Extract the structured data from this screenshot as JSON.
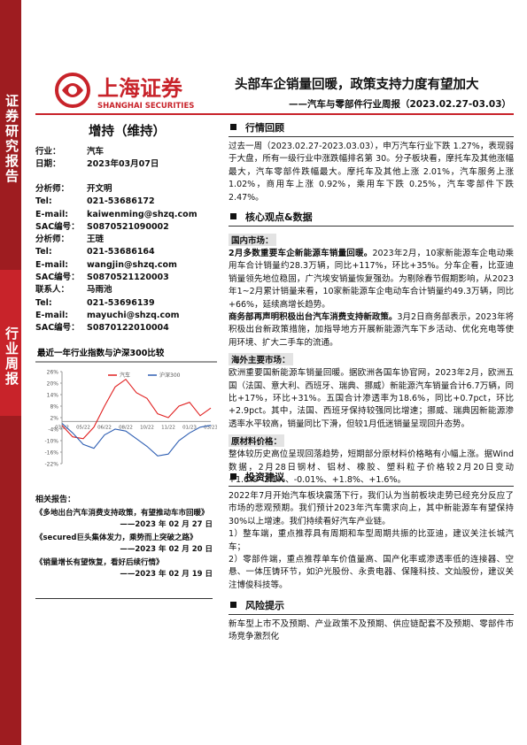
{
  "sidebar": {
    "top": "证券研究报告",
    "middle": "行业周报"
  },
  "logo": {
    "cn": "上海证券",
    "en": "SHANGHAI SECURITIES"
  },
  "header": {
    "title": "头部车企销量回暖，政策支持力度有望加大",
    "subtitle": "——汽车与零部件行业周报（2023.02.27-03.03）"
  },
  "rating": "增持（维持）",
  "info": [
    {
      "label": "行业：",
      "value": "汽车"
    },
    {
      "label": "日期：",
      "value": "2023年03月07日"
    }
  ],
  "contacts": [
    {
      "label": "分析师：",
      "value": "开文明"
    },
    {
      "label": "Tel:",
      "value": "021-53686172"
    },
    {
      "label": "E-mail:",
      "value": "kaiwenming@shzq.com"
    },
    {
      "label": "SAC编号：",
      "value": "S0870521090002"
    },
    {
      "label": "分析师：",
      "value": "王琏"
    },
    {
      "label": "Tel:",
      "value": "021-53686164"
    },
    {
      "label": "E-mail:",
      "value": "wangjin@shzq.com"
    },
    {
      "label": "SAC编号：",
      "value": "S0870521120003"
    },
    {
      "label": "联系人：",
      "value": "马雨池"
    },
    {
      "label": "Tel:",
      "value": "021-53696139"
    },
    {
      "label": "E-mail:",
      "value": "mayuchi@shzq.com"
    },
    {
      "label": "SAC编号：",
      "value": "S0870122010004"
    }
  ],
  "chart_data": {
    "type": "line",
    "title": "最近一年行业指数与沪深300比较",
    "categories": [
      "03/22",
      null,
      "05/22",
      null,
      "06/22",
      null,
      "08/22",
      null,
      "10/22",
      null,
      "11/22",
      null,
      "01/23",
      null,
      "03/23"
    ],
    "series": [
      {
        "name": "汽车",
        "color": "#e02020",
        "values": [
          -2,
          -8,
          -9,
          -3,
          8,
          18,
          22,
          15,
          12,
          4,
          2,
          8,
          10,
          3,
          7
        ]
      },
      {
        "name": "沪深300",
        "color": "#2f5fb3",
        "values": [
          -1,
          -6,
          -12,
          -14,
          -7,
          -4,
          -5,
          -9,
          -13,
          -18,
          -17,
          -10,
          -6,
          -3,
          -2
        ]
      }
    ],
    "ylim": [
      -22,
      26
    ],
    "yticks": [
      {
        "value": 26,
        "label": "26%"
      },
      {
        "value": 20,
        "label": "20%"
      },
      {
        "value": 14,
        "label": "14%"
      },
      {
        "value": 8,
        "label": "8%"
      },
      {
        "value": 2,
        "label": "2%"
      },
      {
        "value": -4,
        "label": "-4%"
      },
      {
        "value": -10,
        "label": "-10%"
      },
      {
        "value": -16,
        "label": "-16%"
      },
      {
        "value": -22,
        "label": "-22%"
      }
    ],
    "grid": false
  },
  "related": {
    "title": "相关报告：",
    "items": [
      {
        "text": "《多地出台汽车消费支持政策，有望推动车市回暖》",
        "date": "——2023 年 02 月 27 日"
      },
      {
        "text": "《secured巨头集体发力，乘势而上突破之路》",
        "date": "——2023 年 02 月 20 日"
      },
      {
        "text": "《销量增长有望恢复，看好后续行情》",
        "date": "——2023 年 02 月 19 日"
      }
    ]
  },
  "sections": [
    {
      "heading": "行情回顾",
      "blocks": [
        {
          "text": "过去一周（2023.02.27-2023.03.03），申万汽车行业下跌 1.27%，表现弱于大盘，所有一级行业中涨跌幅排名第 30。分子板块看，摩托车及其他涨幅最大，汽车零部件跌幅最大。摩托车及其他上涨 2.01%，汽车服务上涨 1.02%，商用车上涨 0.92%，乘用车下跌 0.25%，汽车零部件下跌 2.47%。"
        }
      ]
    },
    {
      "heading": "核心观点&数据",
      "blocks": [
        {
          "subtitle": "国内市场：",
          "lead": "2月多数重要车企新能源车销量回暖。",
          "text": "2023年2月，10家新能源车企电动乘用车合计销量约28.3万辆，同比+117%，环比+35%。分车企看，比亚迪销量领先地位稳固，广汽埃安销量恢复强劲。为剔除春节假期影响，从2023年1~2月累计销量来看，10家新能源车企电动车合计销量约49.3万辆，同比+66%，延续高增长趋势。"
        },
        {
          "lead": "商务部再声明积极出台汽车消费支持新政策。",
          "text": "3月2日商务部表示，2023年将积极出台新政策措施，加指导地方开展新能源汽车下乡活动、优化充电等使用环境、扩大二手车的流通。"
        },
        {
          "subtitle": "海外主要市场：",
          "text": "欧洲重要国新能源车销量回暖。据欧洲各国车协官网，2023年2月，欧洲五国（法国、意大利、西班牙、瑞典、挪威）新能源汽车销量合计6.7万辆，同比+17%，环比+31%。五国合计渗透率为18.6%，同比+0.7pct，环比+2.9pct。其中，法国、西班牙保持较强同比增速；挪威、瑞典因新能源渗透率水平较高，销量同比下滑，但较1月低迷销量呈现回升态势。"
        },
        {
          "subtitle": "原材料价格：",
          "text": "整体较历史高位呈现回落趋势，短期部分原材料价格略有小幅上涨。据Wind数据，2月28日钢材、铝材、橡胶、塑料粒子价格较2月20日变动+1.6%~2.1%、-0.01%、+1.8%、+1.6%。"
        }
      ]
    },
    {
      "heading": "投资建议",
      "blocks": [
        {
          "text": "2022年7月开始汽车板块震荡下行，我们认为当前板块走势已经充分反应了市场的悲观预期。我们预计2023年汽车需求向上，其中新能源车有望保持30%以上增速。我们持续看好汽车产业链。"
        },
        {
          "text": "1）整车端，重点推荐具有周期和车型周期共振的比亚迪，建议关注长城汽车；"
        },
        {
          "text": "2）零部件端，重点推荐单车价值量高、国产化率或渗透率低的连接器、空悬、一体压铸环节，如沪光股份、永贵电器、保隆科技、文灿股份，建议关注博俊科技等。"
        }
      ]
    },
    {
      "heading": "风险提示",
      "blocks": [
        {
          "text": "新车型上市不及预期、产业政策不及预期、供应链配套不及预期、零部件市场竞争激烈化"
        }
      ]
    }
  ]
}
